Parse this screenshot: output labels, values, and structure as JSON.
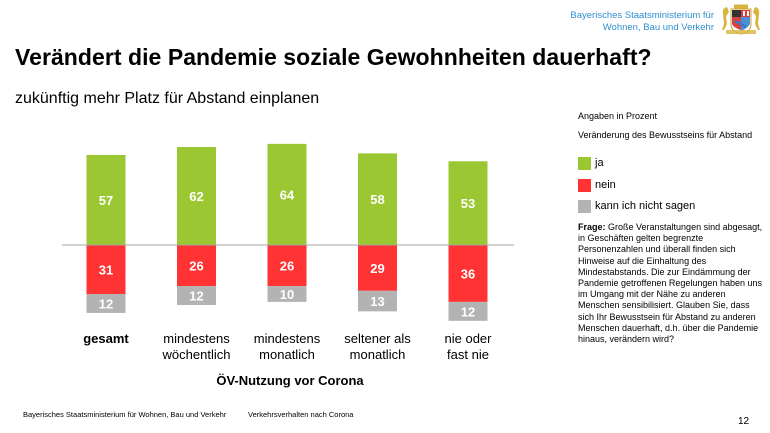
{
  "header": {
    "ministry_line1": "Bayerisches Staatsministerium für",
    "ministry_line2": "Wohnen, Bau und Verkehr",
    "crest_icon": "bavarian-coat-of-arms-icon"
  },
  "title": "Verändert die Pandemie soziale Gewohnheiten dauerhaft?",
  "subtitle": "zukünftig mehr Platz für Abstand einplanen",
  "side_panel": {
    "unit_note": "Angaben in Prozent",
    "legend_title": "Veränderung des Bewusstseins für Abstand",
    "question_label": "Frage:",
    "question_text": " Große Veranstaltungen sind abgesagt, in Geschäften gelten begrenzte Personenzahlen und überall finden sich Hinweise auf die Einhaltung des Mindestabstands. Die zur Eindämmung der Pandemie getroffenen Regelungen haben uns im Umgang mit der Nähe zu anderen Menschen sensibilisiert. Glauben Sie, dass sich Ihr Bewusstsein für Abstand zu anderen Menschen dauerhaft, d.h. über die Pandemie hinaus, verändern wird?"
  },
  "footer": {
    "ministry": "Bayerisches Staatsministerium für Wohnen, Bau und Verkehr",
    "topic": "Verkehrsverhalten nach Corona",
    "page_number": "12"
  },
  "chart_data": {
    "type": "bar",
    "subtype": "diverging-stacked",
    "title": "zukünftig mehr Platz für Abstand einplanen",
    "xlabel": "ÖV-Nutzung vor Corona",
    "ylabel": "",
    "unit": "Angaben in Prozent",
    "categories": [
      {
        "line1": "gesamt",
        "line2": "",
        "bold": true
      },
      {
        "line1": "mindestens",
        "line2": "wöchentlich",
        "bold": false
      },
      {
        "line1": "mindestens",
        "line2": "monatlich",
        "bold": false
      },
      {
        "line1": "seltener als",
        "line2": "monatlich",
        "bold": false
      },
      {
        "line1": "nie oder",
        "line2": "fast nie",
        "bold": false
      }
    ],
    "series": [
      {
        "name": "ja",
        "color": "#9bc832",
        "direction": "up",
        "values": [
          57,
          62,
          64,
          58,
          53
        ]
      },
      {
        "name": "nein",
        "color": "#ff3333",
        "direction": "down",
        "values": [
          31,
          26,
          26,
          29,
          36
        ]
      },
      {
        "name": "kann ich nicht sagen",
        "color": "#b3b3b3",
        "direction": "down",
        "values": [
          12,
          12,
          10,
          13,
          12
        ]
      }
    ],
    "legend_title": "Veränderung des Bewusstseins für Abstand",
    "legend_position": "right",
    "baseline_color": "#a6a6a6",
    "grid": false
  }
}
